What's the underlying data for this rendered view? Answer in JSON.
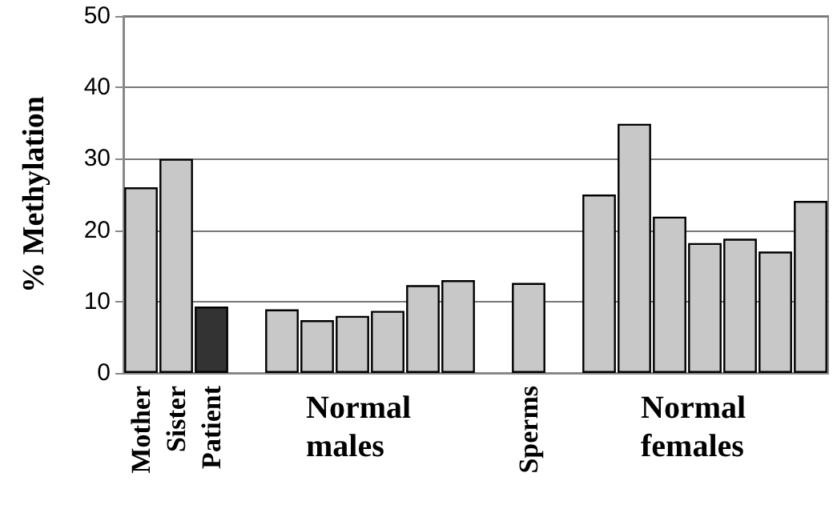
{
  "chart_data": {
    "type": "bar",
    "ylabel": "% Methylation",
    "categories": [
      "Mother",
      "Sister",
      "Patient",
      null,
      null,
      null,
      null,
      null,
      null,
      null,
      null,
      "Sperms",
      null,
      null,
      null,
      null,
      null,
      null,
      null,
      null
    ],
    "values": [
      26,
      30,
      9.3,
      null,
      8.9,
      7.4,
      8.0,
      8.7,
      12.3,
      13.0,
      null,
      12.6,
      null,
      25.0,
      34.9,
      21.9,
      18.2,
      18.8,
      17.0,
      24.1
    ],
    "colors": [
      "#c8c8c8",
      "#c8c8c8",
      "#333333",
      null,
      "#c8c8c8",
      "#c8c8c8",
      "#c8c8c8",
      "#c8c8c8",
      "#c8c8c8",
      "#c8c8c8",
      null,
      "#c8c8c8",
      null,
      "#c8c8c8",
      "#c8c8c8",
      "#c8c8c8",
      "#c8c8c8",
      "#c8c8c8",
      "#c8c8c8",
      "#c8c8c8"
    ],
    "annotations": [
      "Normal males",
      "Normal females"
    ],
    "ylim": [
      0,
      50
    ],
    "yticks": [
      0,
      10,
      20,
      30,
      40,
      50
    ],
    "grid": "y"
  }
}
